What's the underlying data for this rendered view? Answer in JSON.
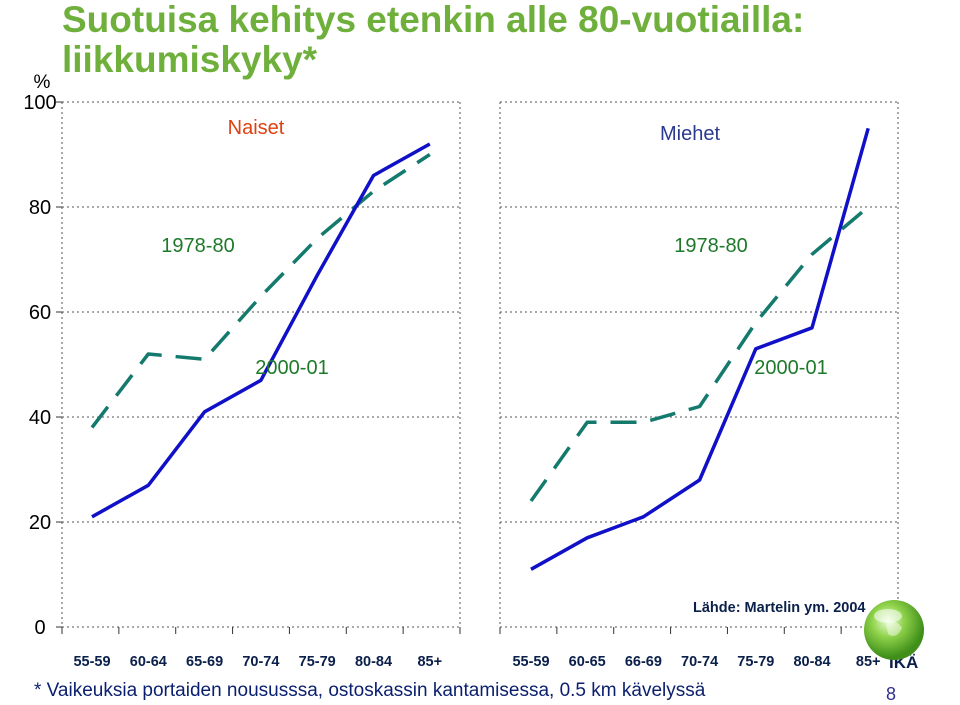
{
  "title": "Suotuisa kehitys etenkin alle 80-vuotiailla: liikkumiskyky*",
  "footnote": "* Vaikeuksia portaiden noususssa, ostoskassin kantamisessa, 0.5 km kävelyssä",
  "page_number": "8",
  "source": "Lähde: Martelin ym. 2004",
  "x_axis_title": "IKÄ",
  "colors": {
    "title": "#6fb03c",
    "series_1978": "#147a6e",
    "series_2000": "#1010c8",
    "label_1978": "#1e7a2a",
    "label_2000": "#1e7a2a",
    "naiset": "#e04010",
    "miehet": "#2a3a8f"
  },
  "chart_data": [
    {
      "type": "line",
      "title": "Naiset",
      "ylabel": "%",
      "ylim": [
        0,
        100
      ],
      "yticks": [
        0,
        20,
        40,
        60,
        80,
        100
      ],
      "categories": [
        "55-59",
        "60-64",
        "65-69",
        "70-74",
        "75-79",
        "80-84",
        "85+"
      ],
      "grid": true,
      "series": [
        {
          "name": "1978-80",
          "style": "dashed",
          "values": [
            38,
            52,
            51,
            63,
            74,
            83,
            90
          ]
        },
        {
          "name": "2000-01",
          "style": "solid",
          "values": [
            21,
            27,
            41,
            47,
            67,
            86,
            92
          ]
        }
      ]
    },
    {
      "type": "line",
      "title": "Miehet",
      "ylim": [
        0,
        100
      ],
      "categories": [
        "55-59",
        "60-65",
        "66-69",
        "70-74",
        "75-79",
        "80-84",
        "85+"
      ],
      "grid": true,
      "series": [
        {
          "name": "1978-80",
          "style": "dashed",
          "values": [
            24,
            39,
            39,
            42,
            58,
            71,
            80
          ]
        },
        {
          "name": "2000-01",
          "style": "solid",
          "values": [
            11,
            17,
            21,
            28,
            53,
            57,
            95
          ]
        }
      ]
    }
  ]
}
